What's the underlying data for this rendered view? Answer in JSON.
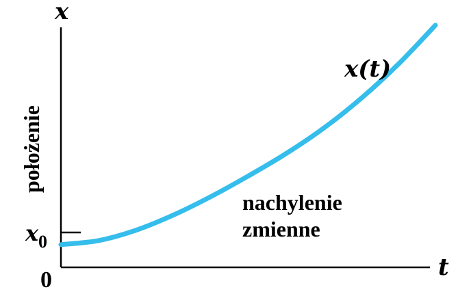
{
  "chart_data": {
    "type": "line",
    "title": "",
    "xlabel": "t",
    "ylabel": "x",
    "ylabel_side": "położenie",
    "origin_label": "0",
    "x0_label": "x",
    "x0_subscript": "0",
    "series": [
      {
        "name": "x(t)",
        "name_main": "x",
        "name_arg": "(t)",
        "color": "#35BDEC",
        "x": [
          0,
          1,
          2,
          3,
          4,
          5,
          6,
          7,
          8,
          9,
          10
        ],
        "y": [
          0.9,
          1.06,
          1.47,
          2.07,
          2.8,
          3.62,
          4.5,
          5.5,
          6.68,
          8.04,
          9.6
        ]
      }
    ],
    "xlim": [
      0,
      10.95
    ],
    "ylim": [
      0,
      10.6
    ],
    "annotation": [
      "nachylenie",
      "zmienne"
    ],
    "grid": false,
    "legend": "none"
  }
}
